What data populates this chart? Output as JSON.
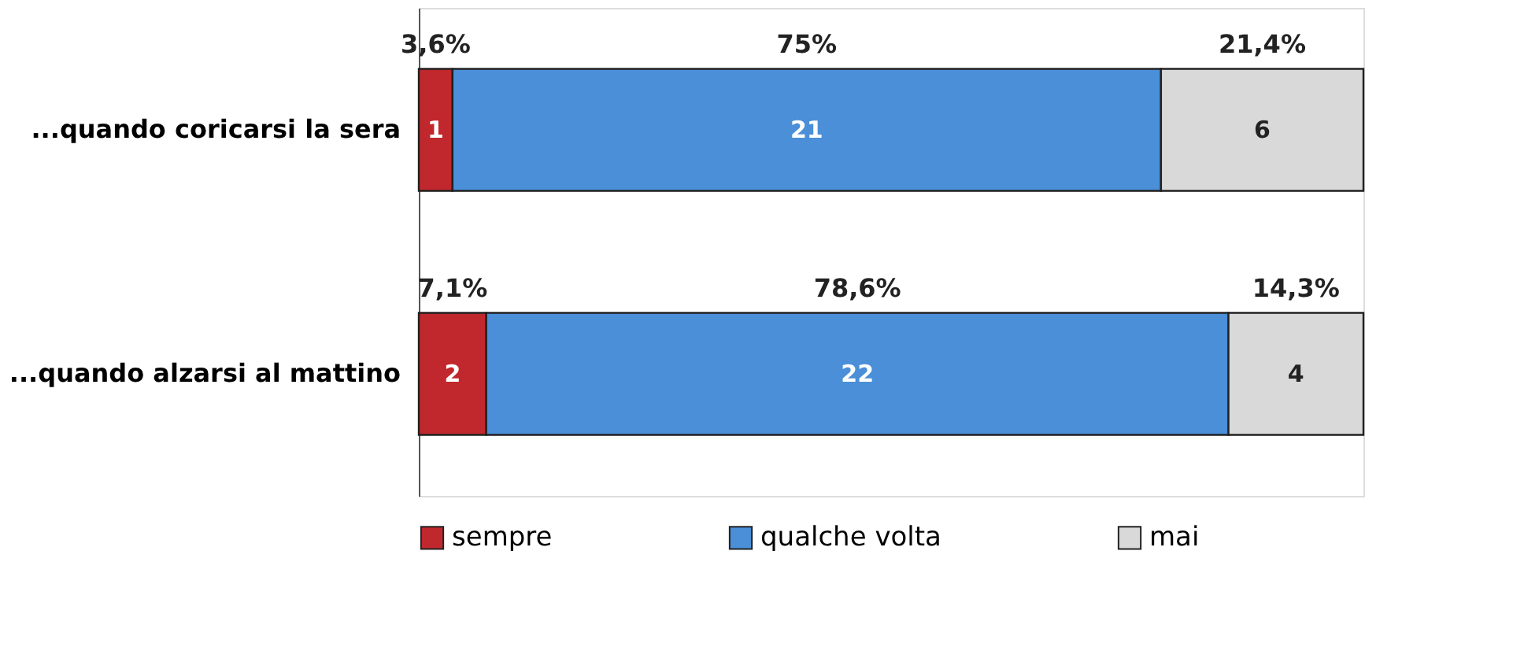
{
  "chart_data": {
    "type": "bar",
    "orientation": "horizontal",
    "stacked": true,
    "data_labels": true,
    "legend": "bottom",
    "categories": [
      "...quando coricarsi la sera",
      "...quando alzarsi al mattino"
    ],
    "series": [
      {
        "name": "sempre",
        "color": "#c0282d",
        "values": [
          1,
          2
        ]
      },
      {
        "name": "qualche volta",
        "color": "#4a8fd8",
        "values": [
          21,
          22
        ]
      },
      {
        "name": "mai",
        "color": "#d9d9d9",
        "values": [
          6,
          4
        ]
      }
    ],
    "annotations": [
      "3,6%",
      "75%",
      "21,4%",
      "7,1%",
      "78,6%",
      "14,3%"
    ]
  }
}
